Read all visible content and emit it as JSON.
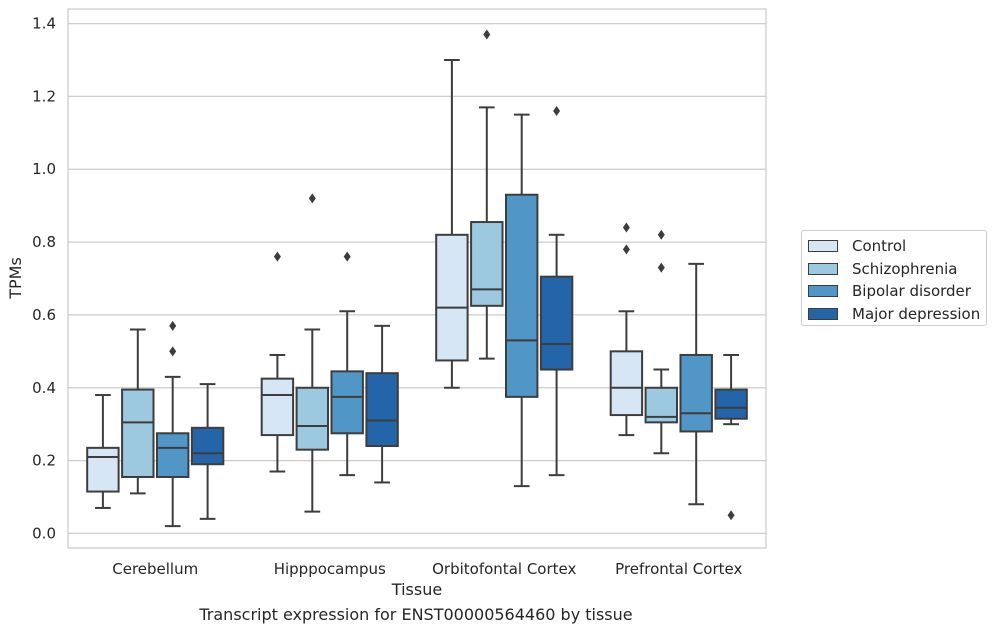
{
  "chart_data": {
    "type": "box",
    "caption": "Transcript expression for ENST00000564460 by tissue",
    "xlabel": "Tissue",
    "ylabel": "TPMs",
    "ylim": [
      -0.04,
      1.44
    ],
    "yticks": [
      0.0,
      0.2,
      0.4,
      0.6,
      0.8,
      1.0,
      1.2,
      1.4
    ],
    "ytick_labels": [
      "0.0",
      "0.2",
      "0.4",
      "0.6",
      "0.8",
      "1.0",
      "1.2",
      "1.4"
    ],
    "categories": [
      "Cerebellum",
      "Hipppocampus",
      "Orbitofontal Cortex",
      "Prefrontal Cortex"
    ],
    "grid": "horizontal",
    "legend_position": "right, outside",
    "series": [
      {
        "name": "Control",
        "color": "#d6e6f4",
        "boxes": [
          {
            "whislo": 0.07,
            "q1": 0.115,
            "med": 0.21,
            "q3": 0.235,
            "whishi": 0.38,
            "fliers": []
          },
          {
            "whislo": 0.17,
            "q1": 0.27,
            "med": 0.38,
            "q3": 0.425,
            "whishi": 0.49,
            "fliers": [
              0.76
            ]
          },
          {
            "whislo": 0.4,
            "q1": 0.475,
            "med": 0.62,
            "q3": 0.82,
            "whishi": 1.3,
            "fliers": []
          },
          {
            "whislo": 0.27,
            "q1": 0.325,
            "med": 0.4,
            "q3": 0.5,
            "whishi": 0.61,
            "fliers": [
              0.78,
              0.84
            ]
          }
        ]
      },
      {
        "name": "Schizophrenia",
        "color": "#9dc9e0",
        "boxes": [
          {
            "whislo": 0.11,
            "q1": 0.155,
            "med": 0.305,
            "q3": 0.395,
            "whishi": 0.56,
            "fliers": []
          },
          {
            "whislo": 0.06,
            "q1": 0.23,
            "med": 0.295,
            "q3": 0.4,
            "whishi": 0.56,
            "fliers": [
              0.92
            ]
          },
          {
            "whislo": 0.48,
            "q1": 0.625,
            "med": 0.67,
            "q3": 0.855,
            "whishi": 1.17,
            "fliers": [
              1.37
            ]
          },
          {
            "whislo": 0.22,
            "q1": 0.305,
            "med": 0.32,
            "q3": 0.4,
            "whishi": 0.45,
            "fliers": [
              0.73,
              0.82
            ]
          }
        ]
      },
      {
        "name": "Bipolar disorder",
        "color": "#5097c7",
        "boxes": [
          {
            "whislo": 0.02,
            "q1": 0.155,
            "med": 0.235,
            "q3": 0.275,
            "whishi": 0.43,
            "fliers": [
              0.5,
              0.57
            ]
          },
          {
            "whislo": 0.16,
            "q1": 0.275,
            "med": 0.375,
            "q3": 0.445,
            "whishi": 0.61,
            "fliers": [
              0.76
            ]
          },
          {
            "whislo": 0.13,
            "q1": 0.375,
            "med": 0.53,
            "q3": 0.93,
            "whishi": 1.15,
            "fliers": []
          },
          {
            "whislo": 0.08,
            "q1": 0.28,
            "med": 0.33,
            "q3": 0.49,
            "whishi": 0.74,
            "fliers": []
          }
        ]
      },
      {
        "name": "Major depression",
        "color": "#2465a9",
        "boxes": [
          {
            "whislo": 0.04,
            "q1": 0.19,
            "med": 0.22,
            "q3": 0.29,
            "whishi": 0.41,
            "fliers": []
          },
          {
            "whislo": 0.14,
            "q1": 0.24,
            "med": 0.31,
            "q3": 0.44,
            "whishi": 0.57,
            "fliers": []
          },
          {
            "whislo": 0.16,
            "q1": 0.45,
            "med": 0.52,
            "q3": 0.705,
            "whishi": 0.82,
            "fliers": [
              1.16
            ]
          },
          {
            "whislo": 0.3,
            "q1": 0.315,
            "med": 0.345,
            "q3": 0.395,
            "whishi": 0.49,
            "fliers": [
              0.05
            ]
          }
        ]
      }
    ]
  }
}
